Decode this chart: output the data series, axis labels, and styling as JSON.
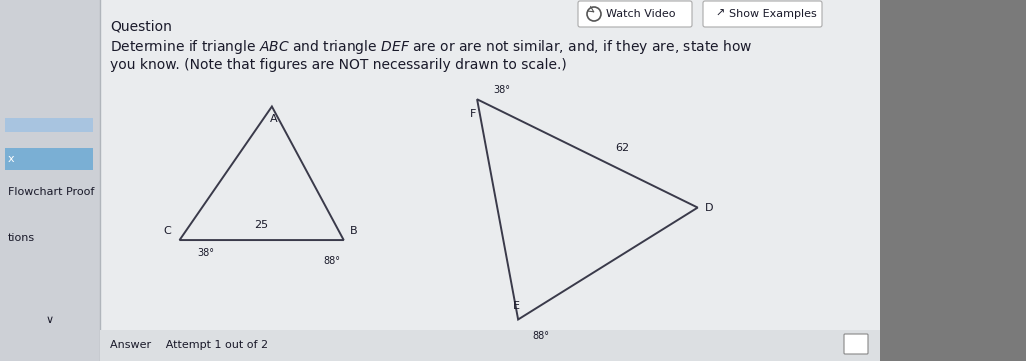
{
  "bg_color": "#c8cdd4",
  "content_bg": "#e8eaed",
  "white_bg": "#f0f2f4",
  "left_sidebar_color": "#d0d5db",
  "right_sidebar_color": "#7a7a7a",
  "title_text": "Question",
  "watch_video_text": "Watch Video",
  "show_examples_text": "Show Examples",
  "answer_text": "Answer  Attempt 1 out of 2",
  "sidebar_items": [
    "x",
    "Flowchart Proof",
    "",
    "tions"
  ],
  "triangle1": {
    "C": [
      0.175,
      0.665
    ],
    "B": [
      0.335,
      0.665
    ],
    "A": [
      0.265,
      0.295
    ],
    "label_C": "C",
    "label_B": "B",
    "label_A": "A",
    "side_CB_label": "25",
    "angle_C_text": "38°",
    "angle_B_text": "88°"
  },
  "triangle2": {
    "E": [
      0.505,
      0.885
    ],
    "D": [
      0.68,
      0.575
    ],
    "F": [
      0.465,
      0.275
    ],
    "label_E": "E",
    "label_D": "D",
    "label_F": "F",
    "side_FD_label": "62",
    "angle_E_text": "88°",
    "angle_F_text": "38°"
  },
  "line_color": "#3a3a4a",
  "text_color": "#1a1a2a",
  "font_size_labels": 8,
  "font_size_angles": 7,
  "font_size_side": 8,
  "font_size_title": 10,
  "font_size_problem": 10,
  "font_size_answer": 8,
  "font_size_sidebar": 8,
  "problem_line1": "Determine if triangle $ABC$ and triangle $DEF$ are or are not similar, and, if they are, state how",
  "problem_line2": "you know. (Note that figures are NOT necessarily drawn to scale.)"
}
